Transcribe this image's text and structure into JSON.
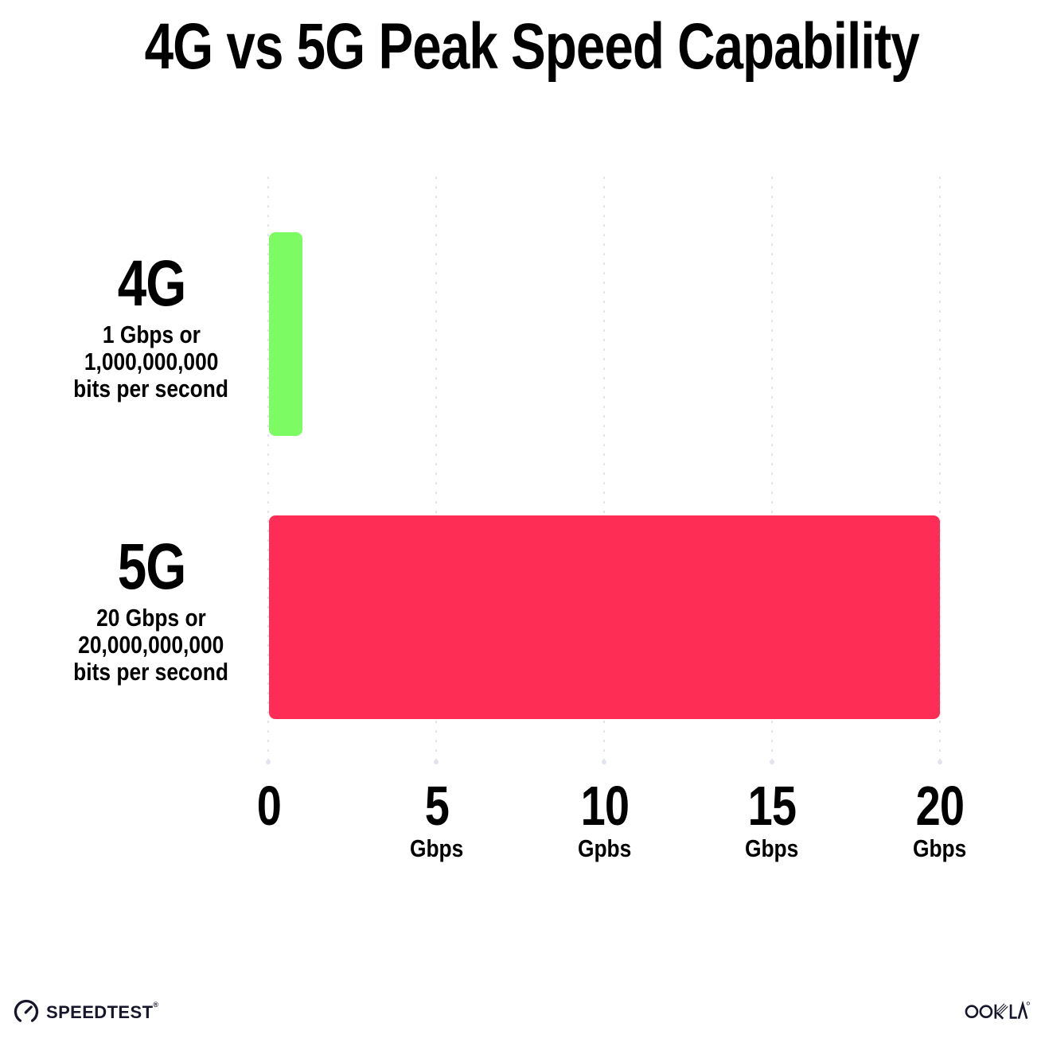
{
  "title": "4G vs 5G Peak Speed Capability",
  "chart_data": {
    "type": "bar",
    "orientation": "horizontal",
    "title": "4G vs 5G Peak Speed Capability",
    "categories": [
      "4G",
      "5G"
    ],
    "values": [
      1,
      20
    ],
    "unit": "Gbps",
    "xlim": [
      0,
      20
    ],
    "x_tick_values": [
      0,
      5,
      10,
      15,
      20
    ],
    "grid": "vertical-dotted",
    "legend": "none",
    "rows": [
      {
        "label": "4G",
        "sublines": [
          "1 Gbps or",
          "1,000,000,000",
          "bits per second"
        ],
        "value_gbps": 1,
        "bar_color": "#7cfb62"
      },
      {
        "label": "5G",
        "sublines": [
          "20 Gbps or",
          "20,000,000,000",
          "bits per second"
        ],
        "value_gbps": 20,
        "bar_color": "#fd2d55"
      }
    ],
    "x_ticks": [
      {
        "num": "0",
        "unit": ""
      },
      {
        "num": "5",
        "unit": "Gbps"
      },
      {
        "num": "10",
        "unit": "Gpbs"
      },
      {
        "num": "15",
        "unit": "Gbps"
      },
      {
        "num": "20",
        "unit": "Gbps"
      }
    ]
  },
  "colors": {
    "bar_4g": "#7cfb62",
    "bar_5g": "#fd2d55",
    "gridline": "#e1e3ef",
    "text": "#000000",
    "footer_logos": "#15162c",
    "background": "#ffffff"
  },
  "footer": {
    "speedtest_label": "SPEEDTEST",
    "speedtest_trademark": "®",
    "ookla_label": "OOKLA"
  }
}
